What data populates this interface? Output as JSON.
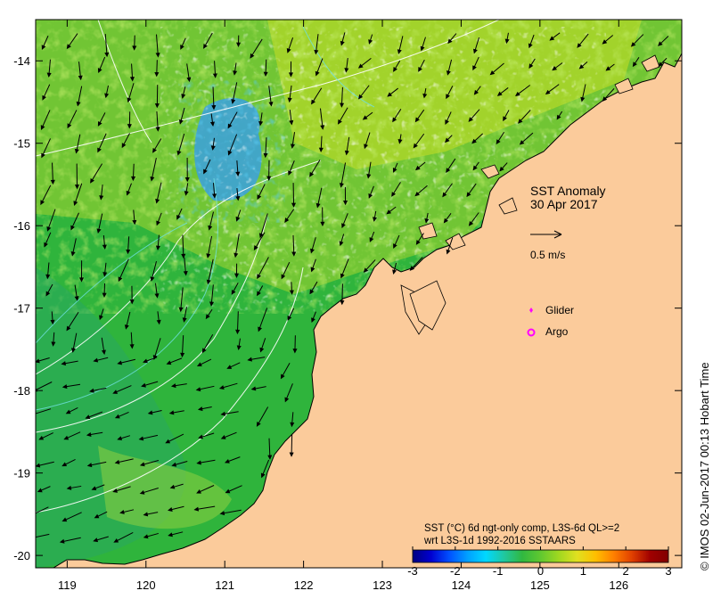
{
  "map": {
    "title": "SST Anomaly",
    "date": "30 Apr 2017",
    "lon_range": [
      118.6,
      126.8
    ],
    "lat_range": [
      -20.15,
      -13.5
    ],
    "lon_ticks": [
      "119",
      "120",
      "121",
      "122",
      "123",
      "124",
      "125",
      "126"
    ],
    "lat_ticks": [
      "-14",
      "-15",
      "-16",
      "-17",
      "-18",
      "-19",
      "-20"
    ],
    "current_scale_label": "0.5 m/s",
    "colors": {
      "land": "#fbcb9b",
      "ocean_base": "#2fb43c",
      "coastline": "#000000",
      "contour": "#ffffff",
      "glider": "#ff00ff",
      "argo": "#ff00ff"
    }
  },
  "legend": {
    "glider_label": "Glider",
    "argo_label": "Argo"
  },
  "colorbar": {
    "line1": "SST (°C) 6d ngt-only comp, L3S-6d QL>=2",
    "line2": "wrt L3S-1d 1992-2016 SSTAARS",
    "min": -3,
    "max": 3,
    "tick_labels": [
      "-3",
      "-2",
      "-1",
      "0",
      "1",
      "2",
      "3"
    ],
    "colors": [
      "#000080",
      "#0000d0",
      "#0050ff",
      "#00a0ff",
      "#00d8ff",
      "#20c8a0",
      "#30b840",
      "#60c830",
      "#a0d820",
      "#e0e020",
      "#ffc000",
      "#ff8000",
      "#e04000",
      "#a00000",
      "#800000"
    ]
  },
  "credit": "© IMOS 02-Jun-2017 00:13 Hobart Time"
}
